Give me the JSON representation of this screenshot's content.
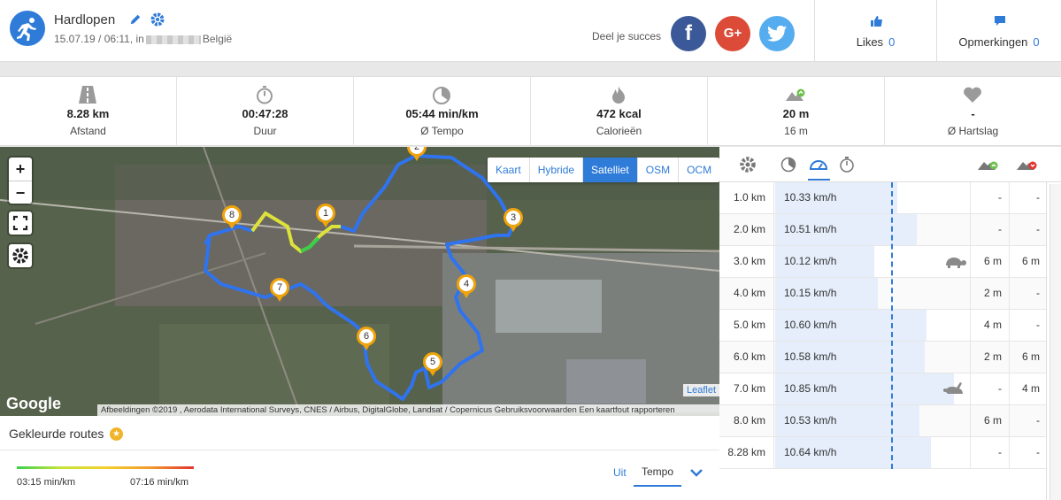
{
  "header": {
    "title": "Hardlopen",
    "subtitle_pre": "15.07.19 / 06:11, in",
    "subtitle_post": "België",
    "share_label": "Deel je succes",
    "likes_label": "Likes",
    "likes_count": "0",
    "comments_label": "Opmerkingen",
    "comments_count": "0"
  },
  "stats": [
    {
      "value": "8.28 km",
      "label": "Afstand",
      "icon": "road-icon"
    },
    {
      "value": "00:47:28",
      "label": "Duur",
      "icon": "stopwatch-icon"
    },
    {
      "value": "05:44 min/km",
      "label": "Ø Tempo",
      "icon": "pace-icon"
    },
    {
      "value": "472 kcal",
      "label": "Calorieën",
      "icon": "flame-icon"
    },
    {
      "value": "20 m",
      "label": "16 m",
      "icon": "elevation-icon"
    },
    {
      "value": "-",
      "label": "Ø Hartslag",
      "icon": "heart-icon"
    }
  ],
  "map": {
    "layers": [
      "Kaart",
      "Hybride",
      "Satelliet",
      "OSM",
      "OCM"
    ],
    "active_layer": "Satelliet",
    "google": "Google",
    "leaflet": "Leaflet",
    "attribution": "Afbeeldingen ©2019 , Aerodata International Surveys, CNES / Airbus, DigitalGlobe, Landsat / Copernicus    Gebruiksvoorwaarden    Een kaartfout rapporteren",
    "markers": [
      "1",
      "2",
      "3",
      "4",
      "5",
      "6",
      "7",
      "8"
    ]
  },
  "colored_routes": {
    "title": "Gekleurde routes",
    "min_label": "03:15 min/km",
    "max_label": "07:16 min/km",
    "off_label": "Uit",
    "mode_label": "Tempo"
  },
  "splits": {
    "colors": {
      "accent": "#2f7bd8",
      "bar": "#e5eefa",
      "up": "#6cc04a",
      "down": "#e2352e"
    },
    "rows": [
      {
        "km": "1.0 km",
        "speed": "10.33 km/h",
        "kmh": 10.33,
        "up": "-",
        "down": "-",
        "anim": ""
      },
      {
        "km": "2.0 km",
        "speed": "10.51 km/h",
        "kmh": 10.51,
        "up": "-",
        "down": "-",
        "anim": ""
      },
      {
        "km": "3.0 km",
        "speed": "10.12 km/h",
        "kmh": 10.12,
        "up": "6 m",
        "down": "6 m",
        "anim": "turtle-icon"
      },
      {
        "km": "4.0 km",
        "speed": "10.15 km/h",
        "kmh": 10.15,
        "up": "2 m",
        "down": "-",
        "anim": ""
      },
      {
        "km": "5.0 km",
        "speed": "10.60 km/h",
        "kmh": 10.6,
        "up": "4 m",
        "down": "-",
        "anim": ""
      },
      {
        "km": "6.0 km",
        "speed": "10.58 km/h",
        "kmh": 10.58,
        "up": "2 m",
        "down": "6 m",
        "anim": ""
      },
      {
        "km": "7.0 km",
        "speed": "10.85 km/h",
        "kmh": 10.85,
        "up": "-",
        "down": "4 m",
        "anim": "rabbit-icon"
      },
      {
        "km": "8.0 km",
        "speed": "10.53 km/h",
        "kmh": 10.53,
        "up": "6 m",
        "down": "-",
        "anim": ""
      },
      {
        "km": "8.28 km",
        "speed": "10.64 km/h",
        "kmh": 10.64,
        "up": "-",
        "down": "-",
        "anim": ""
      }
    ]
  }
}
